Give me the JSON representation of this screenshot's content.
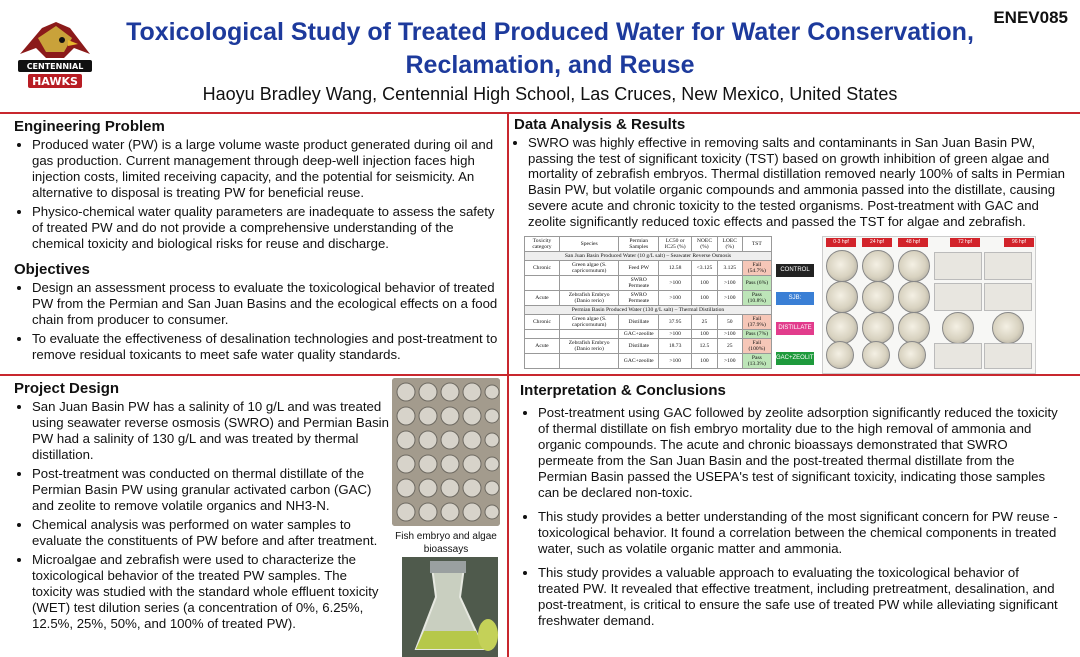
{
  "header": {
    "poster_id": "ENEV085",
    "title_line1": "Toxicological Study of Treated Produced Water for Water Conservation,",
    "title_line2": "Reclamation, and Reuse",
    "author": "Haoyu Bradley Wang, Centennial High School, Las Cruces, New Mexico, United States",
    "logo_text_top": "CENTENNIAL",
    "logo_text_bottom": "HAWKS"
  },
  "engineering_problem": {
    "heading": "Engineering Problem",
    "bullets": [
      "Produced water (PW) is a large volume waste product generated during oil and gas production. Current management through deep-well injection faces high injection costs, limited receiving capacity, and the potential for seismicity. An alternative to disposal is treating PW for beneficial reuse.",
      "Physico-chemical water quality parameters are inadequate to assess the safety of treated PW and do not provide a comprehensive understanding of the chemical toxicity and biological risks for reuse and discharge."
    ]
  },
  "objectives": {
    "heading": "Objectives",
    "bullets": [
      "Design an assessment process to evaluate the toxicological behavior of treated PW from the Permian and San Juan Basins and the ecological effects on a food chain from producer to consumer.",
      "To evaluate the effectiveness of desalination technologies and post-treatment to remove residual toxicants to meet safe water quality standards."
    ]
  },
  "project_design": {
    "heading": "Project Design",
    "bullets": [
      "San Juan Basin PW has a salinity of 10 g/L and was treated using seawater reverse osmosis (SWRO) and Permian Basin PW had a salinity of 130 g/L and was treated by thermal distillation.",
      "Post-treatment was conducted on thermal distillate of the Permian Basin PW using granular activated carbon (GAC) and zeolite to remove volatile organics and NH3-N.",
      "Chemical analysis was performed on water samples to evaluate the constituents of PW before and after treatment.",
      "Microalgae and zebrafish were used to characterize the toxicological behavior of the treated PW samples. The toxicity was studied with the standard whole effluent toxicity (WET) test dilution series (a concentration of 0%, 6.25%, 12.5%, 25%, 50%, and 100% of treated PW)."
    ],
    "photo_caption": "Fish embryo and algae bioassays"
  },
  "data_analysis": {
    "heading": "Data Analysis & Results",
    "bullet": "SWRO was highly effective in removing salts and contaminants in San Juan Basin PW, passing the test of significant toxicity (TST) based on growth inhibition of green algae and mortality of zebrafish embryos. Thermal distillation removed nearly 100% of salts in Permian Basin PW, but volatile organic compounds and ammonia passed into the distillate, causing severe acute and chronic toxicity to the tested organisms. Post-treatment with GAC and zeolite significantly reduced toxic effects and passed the TST for algae and zebrafish.",
    "table": {
      "headers": [
        "Toxicity category",
        "Species",
        "Permian Samples",
        "LC50 or IC25 (%)",
        "NOEC (%)",
        "LOEC (%)",
        "TST"
      ],
      "group1": "San Juan Basin Produced Water (10 g/L salt) – Seawater Reverse Osmosis",
      "group2": "Permian Basin Produced Water (130 g/L salt) – Thermal Distillation",
      "rows1": [
        [
          "Chronic",
          "Green algae (S. capricornutum)",
          "Feed PW",
          "12.58",
          "<3.125",
          "3.125",
          "Fail (54.7%)"
        ],
        [
          "",
          "",
          "SWRO Permeate",
          ">100",
          "100",
          ">100",
          "Pass (6%)"
        ],
        [
          "Acute",
          "Zebrafish Embryo (Danio rerio)",
          "SWRO Permeate",
          ">100",
          "100",
          ">100",
          "Pass (10.8%)"
        ]
      ],
      "rows2": [
        [
          "Chronic",
          "Green algae (S. capricornutum)",
          "Distillate",
          "37.95",
          "25",
          "50",
          "Fail (37.9%)"
        ],
        [
          "",
          "",
          "GAC+zeolite",
          ">100",
          "100",
          ">100",
          "Pass (7%)"
        ],
        [
          "Acute",
          "Zebrafish Embryo (Danio rerio)",
          "Distillate",
          "18.73",
          "12.5",
          "25",
          "Fail (100%)"
        ],
        [
          "",
          "",
          "GAC+zeolite",
          ">100",
          "100",
          ">100",
          "Pass (13.3%)"
        ]
      ]
    },
    "image_panel": {
      "legend": [
        "CONTROL",
        "SJB: TOXICANT",
        "DISTILLATE",
        "GAC+ZEOLITE"
      ],
      "legend_colors": [
        "#222222",
        "#3a7fd5",
        "#e23c8c",
        "#1e9a3c"
      ],
      "columns": [
        "0-3 hpf",
        "24 hpf",
        "48 hpf",
        "72 hpf",
        "96 hpf"
      ]
    }
  },
  "interpretation": {
    "heading": "Interpretation & Conclusions",
    "bullets": [
      "Post-treatment using GAC followed by zeolite adsorption significantly reduced the toxicity of thermal distillate on fish embryo mortality due to the high removal of ammonia and organic compounds. The acute and chronic bioassays demonstrated that SWRO permeate from the San Juan Basin and the post-treated thermal distillate from the Permian Basin passed the USEPA's test of significant toxicity, indicating those samples can be declared non-toxic.",
      "This study provides a better understanding of the most significant concern for PW reuse - toxicological behavior. It found a correlation between the chemical components in treated water, such as volatile organic matter and ammonia.",
      "This study provides a valuable approach to evaluating the toxicological behavior of treated PW. It revealed that effective treatment, including pretreatment, desalination, and post-treatment, is critical to ensure the safe use of treated PW while alleviating significant freshwater demand."
    ]
  },
  "colors": {
    "title_blue": "#1d3a9c",
    "divider_red": "#c8272e",
    "fail": "#f6c7b8",
    "pass": "#bde5b8"
  }
}
